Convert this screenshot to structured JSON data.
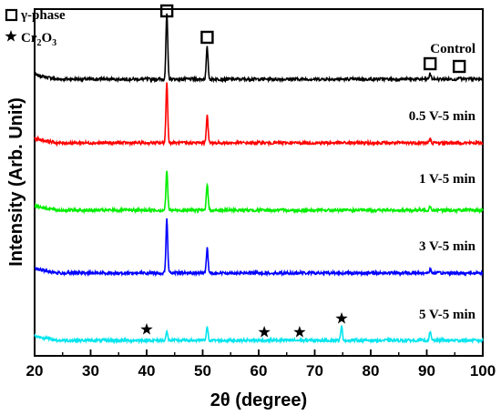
{
  "chart_data": {
    "type": "line",
    "xlabel": "2θ (degree)",
    "ylabel": "Intensity (Arb. Unit)",
    "xlim": [
      20,
      100
    ],
    "xticks": [
      20,
      30,
      40,
      50,
      60,
      70,
      80,
      90,
      100
    ],
    "grid": false,
    "legend": {
      "placement": "top-left",
      "entries": [
        {
          "symbol": "square",
          "text_pre": "γ-phase",
          "text_sub": "",
          "text_post": ""
        },
        {
          "symbol": "star",
          "text_pre": "Cr",
          "text_sub": "2",
          "text_mid": "O",
          "text_sub2": "3"
        }
      ]
    },
    "series": [
      {
        "name": "Control",
        "color": "#000000",
        "peaks": [
          [
            43.6,
            72
          ],
          [
            50.8,
            35
          ],
          [
            90.6,
            6
          ],
          [
            95.8,
            3
          ]
        ]
      },
      {
        "name": "0.5 V-5 min",
        "color": "#ff0000",
        "peaks": [
          [
            43.6,
            66
          ],
          [
            50.8,
            30
          ],
          [
            90.6,
            4
          ]
        ]
      },
      {
        "name": "1 V-5 min",
        "color": "#00ee00",
        "peaks": [
          [
            43.6,
            43
          ],
          [
            50.8,
            29
          ],
          [
            90.6,
            5
          ]
        ]
      },
      {
        "name": "3 V-5 min",
        "color": "#0000ff",
        "peaks": [
          [
            43.6,
            59
          ],
          [
            50.8,
            27
          ],
          [
            90.6,
            4
          ]
        ]
      },
      {
        "name": "5 V-5 min",
        "color": "#00e5ee",
        "peaks": [
          [
            43.6,
            9
          ],
          [
            50.8,
            14
          ],
          [
            74.8,
            15
          ],
          [
            90.6,
            9
          ]
        ]
      }
    ],
    "annotations": {
      "square_markers_2theta": [
        43.6,
        50.8,
        90.6,
        95.8
      ],
      "star_markers_2theta": [
        40.0,
        61.0,
        67.3,
        74.8
      ]
    }
  }
}
